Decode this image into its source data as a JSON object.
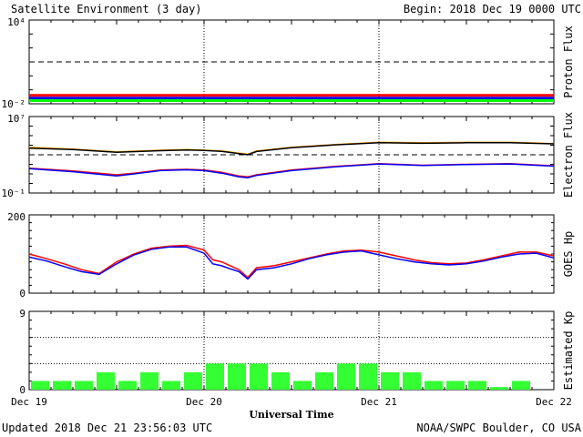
{
  "header": {
    "title": "Satellite Environment (3 day)",
    "begin": "Begin:  2018 Dec 19 0000 UTC"
  },
  "footer": {
    "updated": "Updated 2018 Dec 21 23:56:03 UTC",
    "credit": "NOAA/SWPC Boulder, CO USA"
  },
  "x_axis": {
    "title": "Universal Time",
    "ticks": [
      "Dec 19",
      "Dec 20",
      "Dec 21",
      "Dec 22"
    ],
    "range_days": [
      0,
      3
    ]
  },
  "colors": {
    "red": "#ff0000",
    "blue": "#0000ff",
    "green": "#00ff00",
    "orange": "#ffa500",
    "kp_bar": "#33ff33"
  },
  "chart_data": [
    {
      "type": "line",
      "panel": "proton",
      "ylabel": "Proton Flux",
      "scale": "log",
      "ylim": [
        0.01,
        10000
      ],
      "y_tick_labels": [
        "10⁴",
        "10⁻²"
      ],
      "threshold": 10,
      "series": [
        {
          "color": "red",
          "x": [
            0,
            0.5,
            1,
            1.5,
            2,
            2.5,
            3
          ],
          "values": [
            0.04,
            0.04,
            0.04,
            0.04,
            0.04,
            0.04,
            0.04
          ]
        },
        {
          "color": "blue",
          "x": [
            0,
            0.5,
            1,
            1.5,
            2,
            2.5,
            3
          ],
          "values": [
            0.025,
            0.025,
            0.025,
            0.025,
            0.025,
            0.025,
            0.025
          ]
        },
        {
          "color": "green",
          "x": [
            0,
            0.5,
            1,
            1.5,
            2,
            2.5,
            3
          ],
          "values": [
            0.017,
            0.017,
            0.017,
            0.017,
            0.017,
            0.017,
            0.017
          ]
        }
      ]
    },
    {
      "type": "line",
      "panel": "electron",
      "ylabel": "Electron Flux",
      "scale": "log",
      "ylim": [
        0.1,
        10000000
      ],
      "y_tick_labels": [
        "10⁷",
        "10⁻¹"
      ],
      "threshold": 1000,
      "series": [
        {
          "color": "orange",
          "x": [
            0,
            0.25,
            0.5,
            0.75,
            0.9,
            1,
            1.1,
            1.2,
            1.25,
            1.3,
            1.5,
            1.75,
            2,
            2.25,
            2.5,
            2.75,
            3
          ],
          "values": [
            6000,
            4000,
            2000,
            3000,
            3500,
            3000,
            2500,
            1500,
            1200,
            2500,
            6000,
            12000,
            20000,
            18000,
            20000,
            20000,
            15000
          ]
        },
        {
          "color": "black",
          "x": [
            0,
            0.25,
            0.5,
            0.75,
            0.9,
            1,
            1.1,
            1.2,
            1.25,
            1.3,
            1.5,
            1.75,
            2,
            2.25,
            2.5,
            2.75,
            3
          ],
          "values": [
            5000,
            3500,
            1800,
            2700,
            3200,
            2800,
            2300,
            1300,
            1000,
            2200,
            5500,
            11000,
            18000,
            16000,
            18000,
            18000,
            14000
          ]
        },
        {
          "color": "red",
          "x": [
            0,
            0.25,
            0.5,
            0.6,
            0.75,
            0.9,
            1,
            1.1,
            1.2,
            1.25,
            1.3,
            1.5,
            1.75,
            2,
            2.25,
            2.5,
            2.75,
            3
          ],
          "values": [
            40,
            20,
            8,
            12,
            25,
            30,
            25,
            15,
            6,
            5,
            8,
            25,
            60,
            120,
            80,
            100,
            120,
            70
          ]
        },
        {
          "color": "blue",
          "x": [
            0,
            0.25,
            0.5,
            0.6,
            0.75,
            0.9,
            1,
            1.1,
            1.2,
            1.25,
            1.3,
            1.5,
            1.75,
            2,
            2.25,
            2.5,
            2.75,
            3
          ],
          "values": [
            35,
            17,
            6,
            10,
            22,
            27,
            22,
            12,
            5,
            4,
            7,
            22,
            55,
            110,
            75,
            95,
            110,
            65
          ]
        }
      ]
    },
    {
      "type": "line",
      "panel": "hp",
      "ylabel": "GOES Hp",
      "scale": "linear",
      "ylim": [
        0,
        200
      ],
      "y_tick_labels": [
        "200",
        "0"
      ],
      "series": [
        {
          "color": "red",
          "x": [
            0,
            0.1,
            0.2,
            0.3,
            0.4,
            0.5,
            0.6,
            0.7,
            0.8,
            0.9,
            1.0,
            1.05,
            1.1,
            1.15,
            1.2,
            1.25,
            1.3,
            1.4,
            1.5,
            1.6,
            1.7,
            1.8,
            1.9,
            2.0,
            2.1,
            2.2,
            2.3,
            2.4,
            2.5,
            2.6,
            2.7,
            2.8,
            2.9,
            3.0
          ],
          "values": [
            100,
            88,
            75,
            60,
            50,
            80,
            100,
            115,
            120,
            122,
            110,
            85,
            80,
            70,
            60,
            40,
            65,
            70,
            80,
            90,
            100,
            108,
            110,
            105,
            95,
            85,
            78,
            75,
            77,
            85,
            95,
            105,
            105,
            95
          ]
        },
        {
          "color": "blue",
          "x": [
            0,
            0.1,
            0.2,
            0.3,
            0.4,
            0.5,
            0.6,
            0.7,
            0.8,
            0.9,
            1.0,
            1.05,
            1.1,
            1.15,
            1.2,
            1.25,
            1.3,
            1.4,
            1.5,
            1.6,
            1.7,
            1.8,
            1.9,
            2.0,
            2.1,
            2.2,
            2.3,
            2.4,
            2.5,
            2.6,
            2.7,
            2.8,
            2.9,
            3.0
          ],
          "values": [
            92,
            82,
            68,
            55,
            48,
            75,
            98,
            112,
            118,
            118,
            102,
            75,
            70,
            62,
            55,
            36,
            60,
            65,
            75,
            88,
            98,
            105,
            108,
            98,
            88,
            80,
            75,
            72,
            75,
            82,
            92,
            100,
            102,
            90
          ]
        }
      ]
    },
    {
      "type": "bar",
      "panel": "kp",
      "ylabel": "Estimated Kp",
      "scale": "linear",
      "ylim": [
        0,
        9
      ],
      "y_tick_labels": [
        "9",
        "0"
      ],
      "bar_width_hours": 3,
      "values": [
        1,
        1,
        1,
        2,
        1,
        2,
        1,
        2,
        3,
        3,
        3,
        2,
        1,
        2,
        3,
        3,
        2,
        2,
        1,
        1,
        1,
        0.3,
        1,
        0
      ]
    }
  ]
}
